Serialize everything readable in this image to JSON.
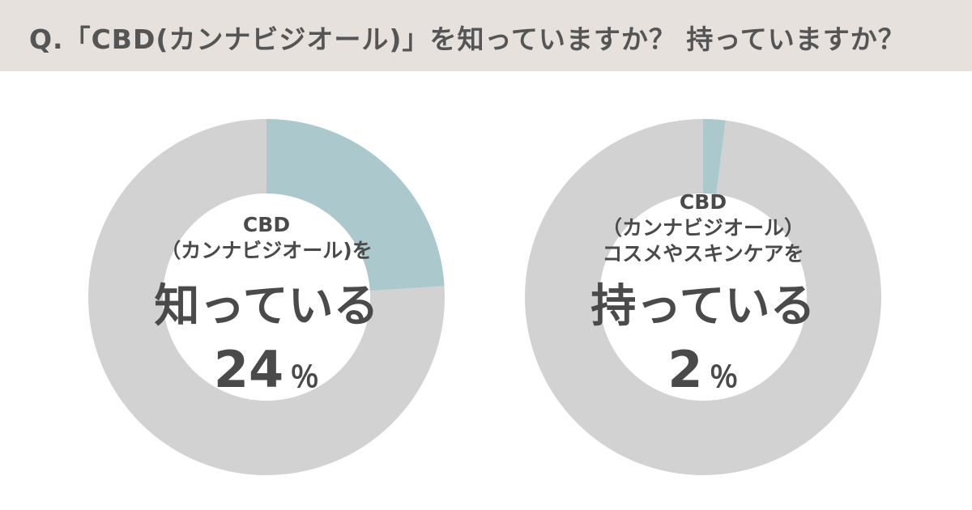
{
  "header": {
    "title": "Q.「CBD(カンナビジオール)」を知っていますか？ 持っていますか？"
  },
  "colors": {
    "header_bg": "#e6e1dc",
    "ring_base": "#d2d2d2",
    "accent": "#abc9cc",
    "text": "#4a4a4a"
  },
  "chart_data": [
    {
      "type": "pie",
      "values": [
        24,
        76
      ],
      "labels": [
        "CBD (カンナビジオール)を 知っている",
        ""
      ],
      "label_lines": [
        "CBD",
        "（カンナビジオール)を"
      ],
      "main_label": "知っている",
      "percent": "24",
      "unit": "％"
    },
    {
      "type": "pie",
      "values": [
        2,
        98
      ],
      "labels": [
        "CBD (カンナビジオール) コスメやスキンケアを 持っている",
        ""
      ],
      "label_lines": [
        "CBD",
        "（カンナビジオール）",
        "コスメやスキンケアを"
      ],
      "main_label": "持っている",
      "percent": "2",
      "unit": "％"
    }
  ]
}
